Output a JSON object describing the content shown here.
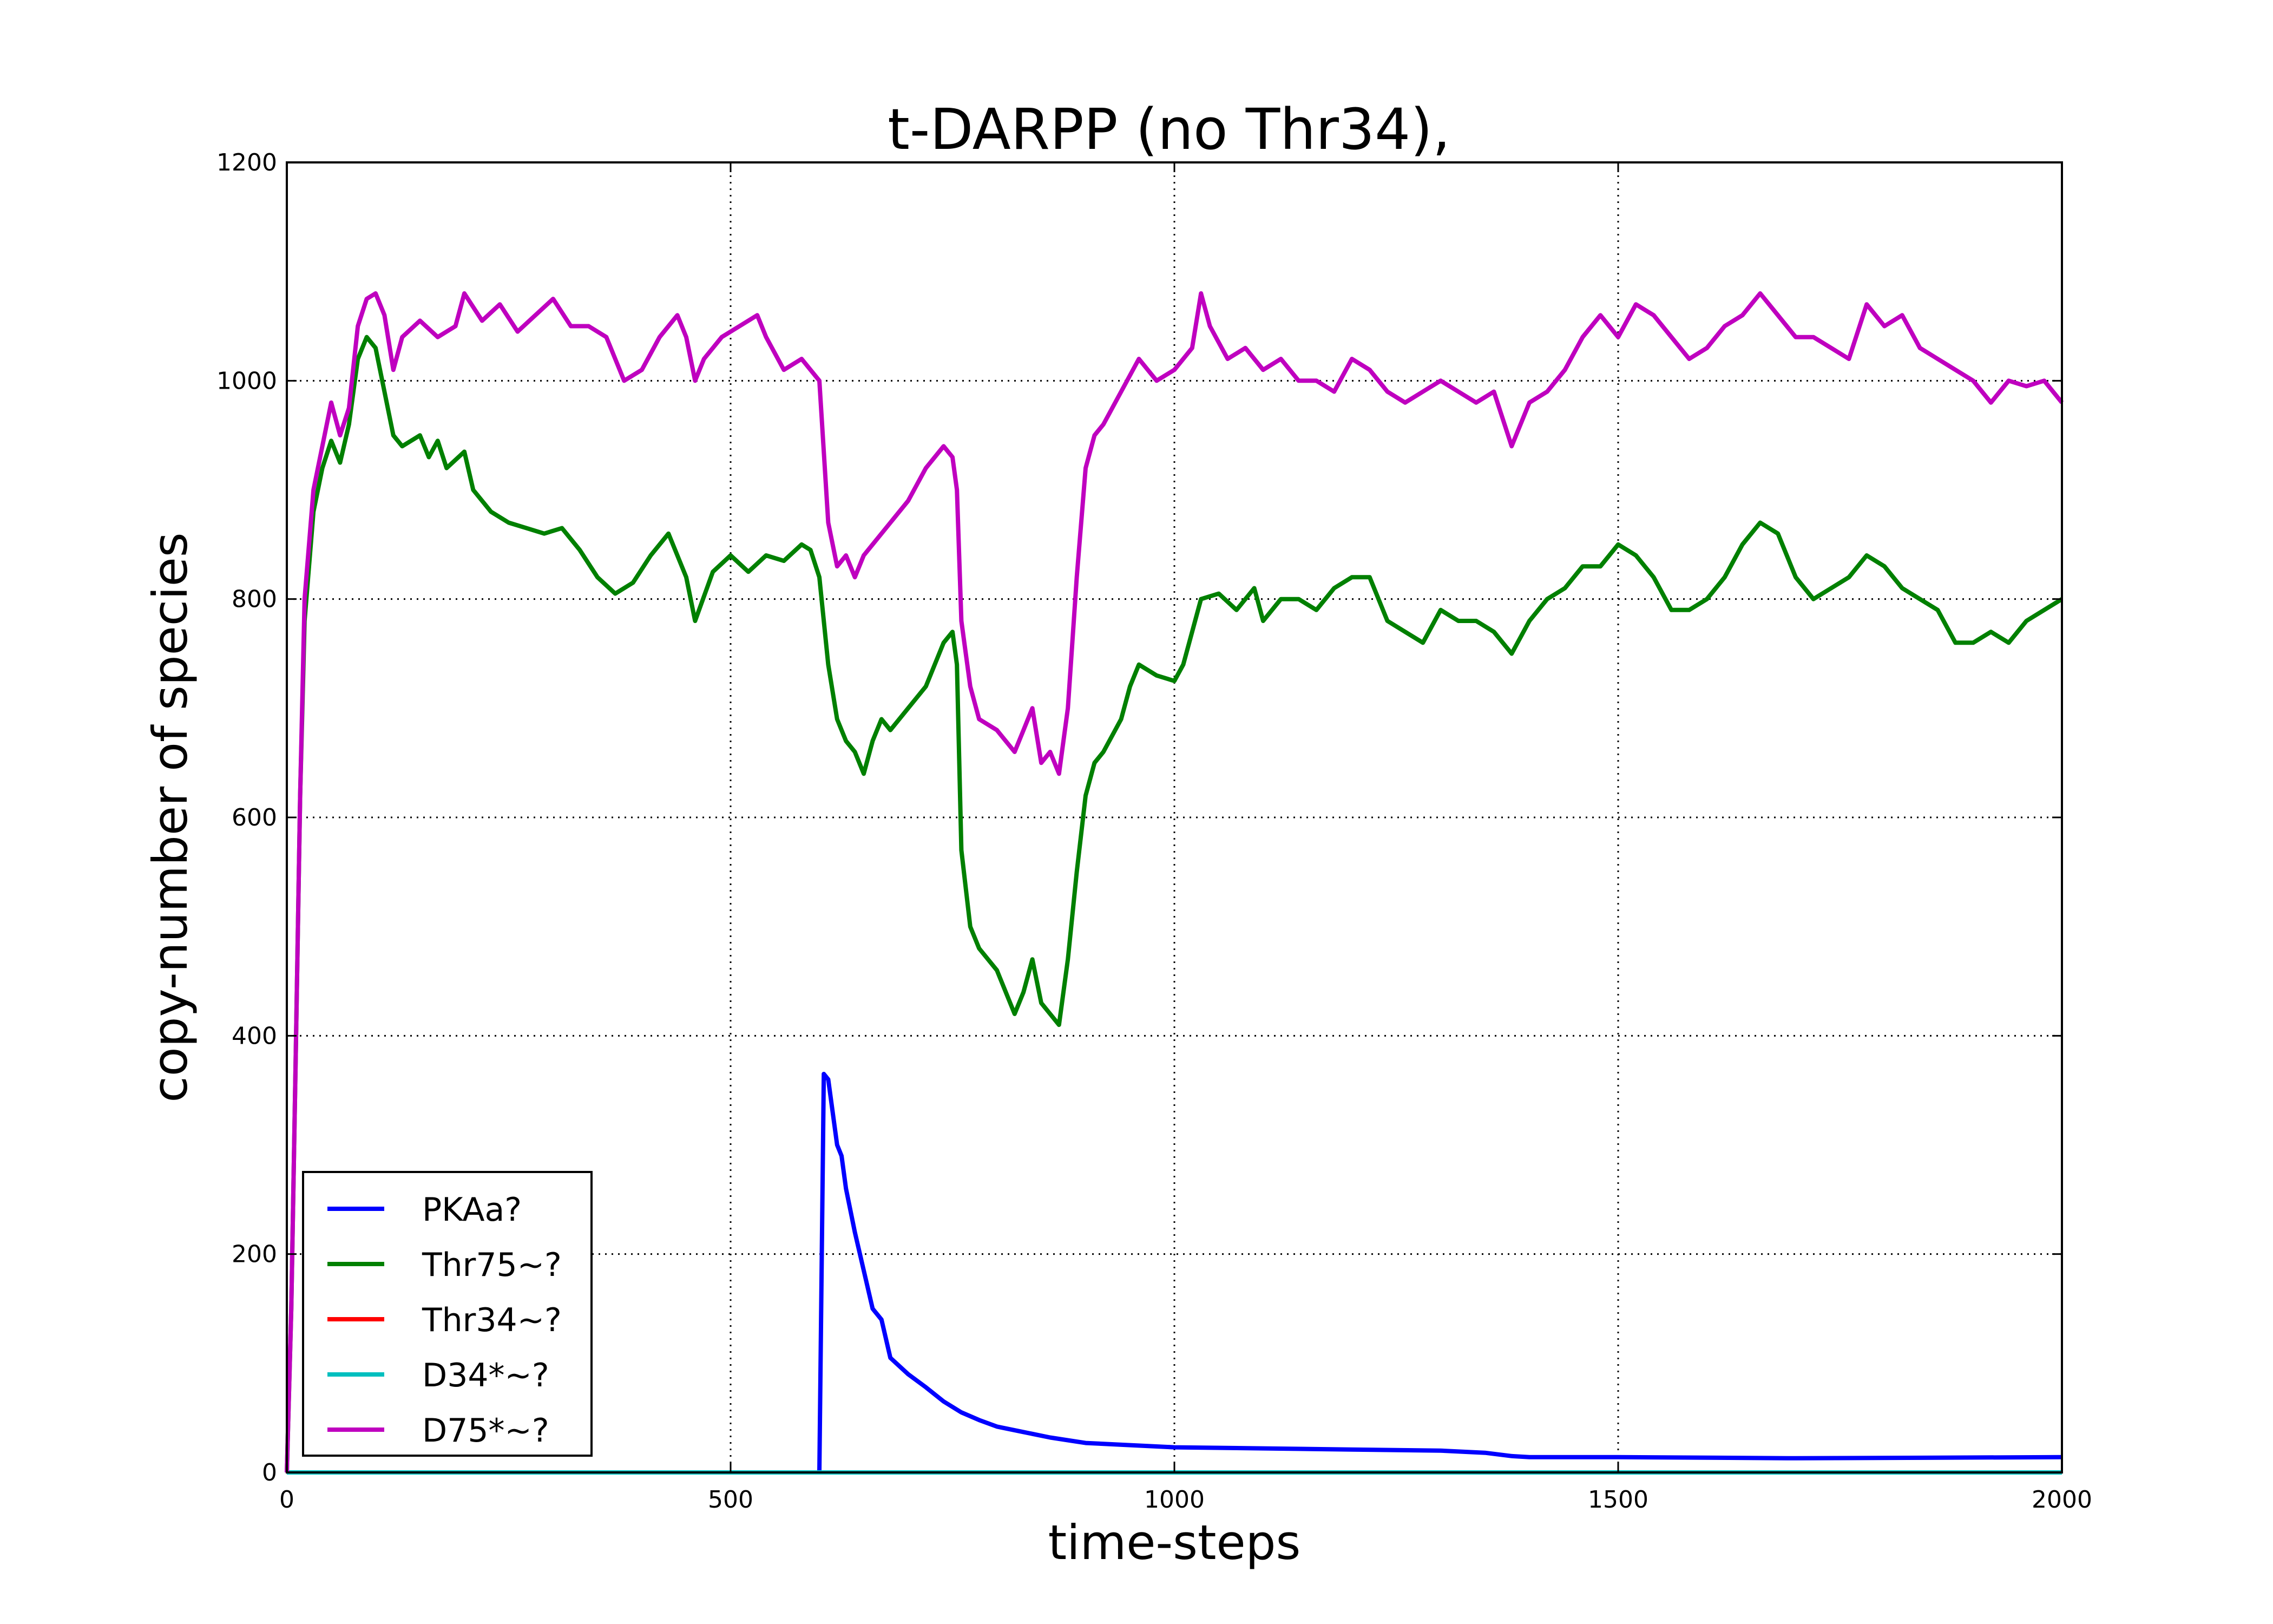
{
  "chart_data": {
    "type": "line",
    "title": "t-DARPP (no Thr34),",
    "xlabel": "time-steps",
    "ylabel": "copy-number of species",
    "xlim": [
      0,
      2000
    ],
    "ylim": [
      0,
      1200
    ],
    "xticks": [
      0,
      500,
      1000,
      1500,
      2000
    ],
    "yticks": [
      0,
      200,
      400,
      600,
      800,
      1000,
      1200
    ],
    "grid": true,
    "legend_position": "lower-left",
    "series": [
      {
        "name": "PKAa?",
        "color": "#0000ff",
        "points": [
          [
            0,
            0
          ],
          [
            598,
            0
          ],
          [
            600,
            0
          ],
          [
            605,
            365
          ],
          [
            610,
            360
          ],
          [
            620,
            300
          ],
          [
            625,
            290
          ],
          [
            630,
            260
          ],
          [
            640,
            220
          ],
          [
            650,
            185
          ],
          [
            660,
            150
          ],
          [
            670,
            140
          ],
          [
            680,
            105
          ],
          [
            700,
            90
          ],
          [
            720,
            78
          ],
          [
            740,
            65
          ],
          [
            760,
            55
          ],
          [
            780,
            48
          ],
          [
            800,
            42
          ],
          [
            830,
            37
          ],
          [
            860,
            32
          ],
          [
            900,
            27
          ],
          [
            950,
            25
          ],
          [
            1000,
            23
          ],
          [
            1100,
            22
          ],
          [
            1200,
            21
          ],
          [
            1300,
            20
          ],
          [
            1350,
            18
          ],
          [
            1380,
            15
          ],
          [
            1400,
            14
          ],
          [
            1500,
            14
          ],
          [
            1700,
            13
          ],
          [
            2000,
            14
          ]
        ]
      },
      {
        "name": "Thr75~?",
        "color": "#008000",
        "points": [
          [
            0,
            0
          ],
          [
            5,
            150
          ],
          [
            10,
            380
          ],
          [
            15,
            620
          ],
          [
            20,
            780
          ],
          [
            30,
            880
          ],
          [
            40,
            920
          ],
          [
            50,
            945
          ],
          [
            60,
            925
          ],
          [
            70,
            960
          ],
          [
            80,
            1020
          ],
          [
            90,
            1040
          ],
          [
            100,
            1030
          ],
          [
            110,
            990
          ],
          [
            120,
            950
          ],
          [
            130,
            940
          ],
          [
            150,
            950
          ],
          [
            160,
            930
          ],
          [
            170,
            945
          ],
          [
            180,
            920
          ],
          [
            200,
            935
          ],
          [
            210,
            900
          ],
          [
            230,
            880
          ],
          [
            250,
            870
          ],
          [
            270,
            865
          ],
          [
            290,
            860
          ],
          [
            310,
            865
          ],
          [
            330,
            845
          ],
          [
            350,
            820
          ],
          [
            370,
            805
          ],
          [
            390,
            815
          ],
          [
            410,
            840
          ],
          [
            430,
            860
          ],
          [
            450,
            820
          ],
          [
            460,
            780
          ],
          [
            480,
            825
          ],
          [
            500,
            840
          ],
          [
            520,
            825
          ],
          [
            540,
            840
          ],
          [
            560,
            835
          ],
          [
            580,
            850
          ],
          [
            590,
            845
          ],
          [
            600,
            820
          ],
          [
            610,
            740
          ],
          [
            620,
            690
          ],
          [
            630,
            670
          ],
          [
            640,
            660
          ],
          [
            650,
            640
          ],
          [
            660,
            670
          ],
          [
            670,
            690
          ],
          [
            680,
            680
          ],
          [
            700,
            700
          ],
          [
            720,
            720
          ],
          [
            740,
            760
          ],
          [
            750,
            770
          ],
          [
            755,
            740
          ],
          [
            760,
            570
          ],
          [
            770,
            500
          ],
          [
            780,
            480
          ],
          [
            800,
            460
          ],
          [
            820,
            420
          ],
          [
            830,
            440
          ],
          [
            840,
            470
          ],
          [
            850,
            430
          ],
          [
            860,
            420
          ],
          [
            870,
            410
          ],
          [
            880,
            470
          ],
          [
            890,
            550
          ],
          [
            900,
            620
          ],
          [
            910,
            650
          ],
          [
            920,
            660
          ],
          [
            940,
            690
          ],
          [
            950,
            720
          ],
          [
            960,
            740
          ],
          [
            980,
            730
          ],
          [
            1000,
            725
          ],
          [
            1010,
            740
          ],
          [
            1030,
            800
          ],
          [
            1050,
            805
          ],
          [
            1070,
            790
          ],
          [
            1090,
            810
          ],
          [
            1100,
            780
          ],
          [
            1120,
            800
          ],
          [
            1140,
            800
          ],
          [
            1160,
            790
          ],
          [
            1180,
            810
          ],
          [
            1200,
            820
          ],
          [
            1220,
            820
          ],
          [
            1240,
            780
          ],
          [
            1260,
            770
          ],
          [
            1280,
            760
          ],
          [
            1300,
            790
          ],
          [
            1320,
            780
          ],
          [
            1340,
            780
          ],
          [
            1360,
            770
          ],
          [
            1380,
            750
          ],
          [
            1400,
            780
          ],
          [
            1420,
            800
          ],
          [
            1440,
            810
          ],
          [
            1460,
            830
          ],
          [
            1480,
            830
          ],
          [
            1500,
            850
          ],
          [
            1520,
            840
          ],
          [
            1540,
            820
          ],
          [
            1560,
            790
          ],
          [
            1580,
            790
          ],
          [
            1600,
            800
          ],
          [
            1620,
            820
          ],
          [
            1640,
            850
          ],
          [
            1660,
            870
          ],
          [
            1680,
            860
          ],
          [
            1700,
            820
          ],
          [
            1720,
            800
          ],
          [
            1740,
            810
          ],
          [
            1760,
            820
          ],
          [
            1780,
            840
          ],
          [
            1800,
            830
          ],
          [
            1820,
            810
          ],
          [
            1840,
            800
          ],
          [
            1860,
            790
          ],
          [
            1880,
            760
          ],
          [
            1900,
            760
          ],
          [
            1920,
            770
          ],
          [
            1940,
            760
          ],
          [
            1960,
            780
          ],
          [
            1980,
            790
          ],
          [
            2000,
            800
          ]
        ]
      },
      {
        "name": "Thr34~?",
        "color": "#ff0000",
        "points": [
          [
            0,
            0
          ],
          [
            2000,
            0
          ]
        ]
      },
      {
        "name": "D34*~?",
        "color": "#00bfbf",
        "points": [
          [
            0,
            0
          ],
          [
            2000,
            0
          ]
        ]
      },
      {
        "name": "D75*~?",
        "color": "#bf00bf",
        "points": [
          [
            0,
            0
          ],
          [
            5,
            150
          ],
          [
            10,
            380
          ],
          [
            15,
            620
          ],
          [
            20,
            800
          ],
          [
            30,
            900
          ],
          [
            40,
            940
          ],
          [
            50,
            980
          ],
          [
            60,
            950
          ],
          [
            70,
            975
          ],
          [
            80,
            1050
          ],
          [
            90,
            1075
          ],
          [
            100,
            1080
          ],
          [
            110,
            1060
          ],
          [
            120,
            1010
          ],
          [
            130,
            1040
          ],
          [
            150,
            1055
          ],
          [
            170,
            1040
          ],
          [
            190,
            1050
          ],
          [
            200,
            1080
          ],
          [
            220,
            1055
          ],
          [
            240,
            1070
          ],
          [
            260,
            1045
          ],
          [
            280,
            1060
          ],
          [
            300,
            1075
          ],
          [
            320,
            1050
          ],
          [
            340,
            1050
          ],
          [
            360,
            1040
          ],
          [
            380,
            1000
          ],
          [
            400,
            1010
          ],
          [
            420,
            1040
          ],
          [
            440,
            1060
          ],
          [
            450,
            1040
          ],
          [
            460,
            1000
          ],
          [
            470,
            1020
          ],
          [
            490,
            1040
          ],
          [
            510,
            1050
          ],
          [
            530,
            1060
          ],
          [
            540,
            1040
          ],
          [
            560,
            1010
          ],
          [
            580,
            1020
          ],
          [
            590,
            1010
          ],
          [
            600,
            1000
          ],
          [
            610,
            870
          ],
          [
            620,
            830
          ],
          [
            630,
            840
          ],
          [
            640,
            820
          ],
          [
            650,
            840
          ],
          [
            660,
            850
          ],
          [
            680,
            870
          ],
          [
            700,
            890
          ],
          [
            720,
            920
          ],
          [
            740,
            940
          ],
          [
            750,
            930
          ],
          [
            755,
            900
          ],
          [
            760,
            780
          ],
          [
            770,
            720
          ],
          [
            780,
            690
          ],
          [
            800,
            680
          ],
          [
            820,
            660
          ],
          [
            830,
            680
          ],
          [
            840,
            700
          ],
          [
            850,
            650
          ],
          [
            860,
            660
          ],
          [
            870,
            640
          ],
          [
            880,
            700
          ],
          [
            890,
            820
          ],
          [
            900,
            920
          ],
          [
            910,
            950
          ],
          [
            920,
            960
          ],
          [
            940,
            990
          ],
          [
            960,
            1020
          ],
          [
            980,
            1000
          ],
          [
            1000,
            1010
          ],
          [
            1020,
            1030
          ],
          [
            1030,
            1080
          ],
          [
            1040,
            1050
          ],
          [
            1060,
            1020
          ],
          [
            1080,
            1030
          ],
          [
            1100,
            1010
          ],
          [
            1120,
            1020
          ],
          [
            1140,
            1000
          ],
          [
            1160,
            1000
          ],
          [
            1180,
            990
          ],
          [
            1200,
            1020
          ],
          [
            1220,
            1010
          ],
          [
            1240,
            990
          ],
          [
            1260,
            980
          ],
          [
            1280,
            990
          ],
          [
            1300,
            1000
          ],
          [
            1320,
            990
          ],
          [
            1340,
            980
          ],
          [
            1360,
            990
          ],
          [
            1380,
            940
          ],
          [
            1400,
            980
          ],
          [
            1420,
            990
          ],
          [
            1440,
            1010
          ],
          [
            1460,
            1040
          ],
          [
            1480,
            1060
          ],
          [
            1500,
            1040
          ],
          [
            1520,
            1070
          ],
          [
            1540,
            1060
          ],
          [
            1560,
            1040
          ],
          [
            1580,
            1020
          ],
          [
            1600,
            1030
          ],
          [
            1620,
            1050
          ],
          [
            1640,
            1060
          ],
          [
            1660,
            1080
          ],
          [
            1680,
            1060
          ],
          [
            1700,
            1040
          ],
          [
            1720,
            1040
          ],
          [
            1740,
            1030
          ],
          [
            1760,
            1020
          ],
          [
            1780,
            1070
          ],
          [
            1800,
            1050
          ],
          [
            1820,
            1060
          ],
          [
            1840,
            1030
          ],
          [
            1860,
            1020
          ],
          [
            1880,
            1010
          ],
          [
            1900,
            1000
          ],
          [
            1920,
            980
          ],
          [
            1940,
            1000
          ],
          [
            1960,
            995
          ],
          [
            1980,
            1000
          ],
          [
            2000,
            980
          ]
        ]
      }
    ]
  }
}
